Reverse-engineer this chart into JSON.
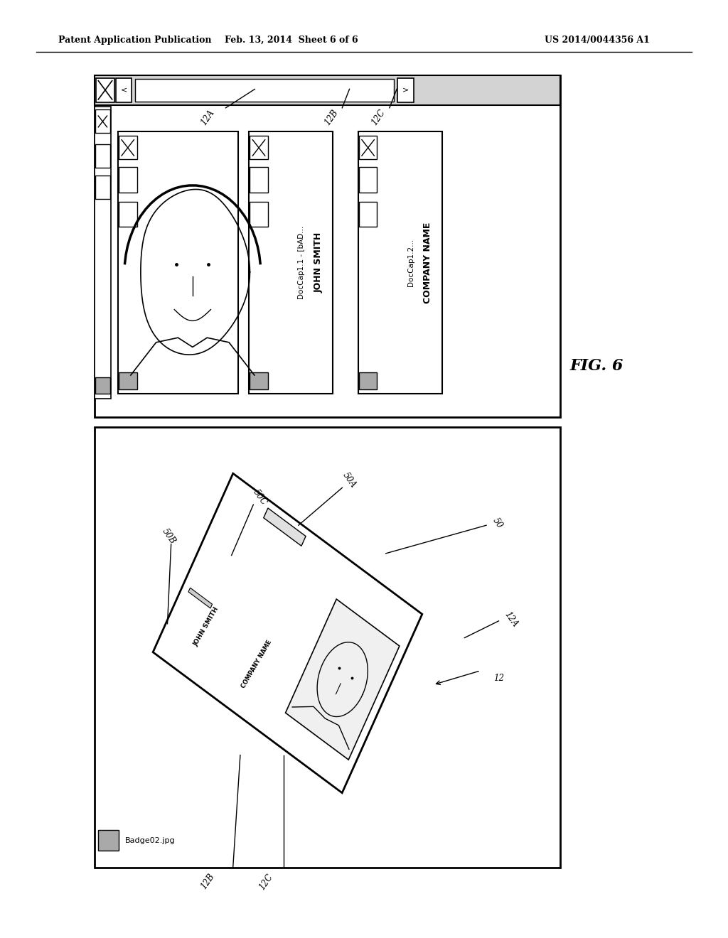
{
  "bg_color": "#ffffff",
  "header_text1": "Patent Application Publication",
  "header_text2": "Feb. 13, 2014  Sheet 6 of 6",
  "header_text3": "US 2014/0044356 A1",
  "fig_label": "FIG. 6"
}
